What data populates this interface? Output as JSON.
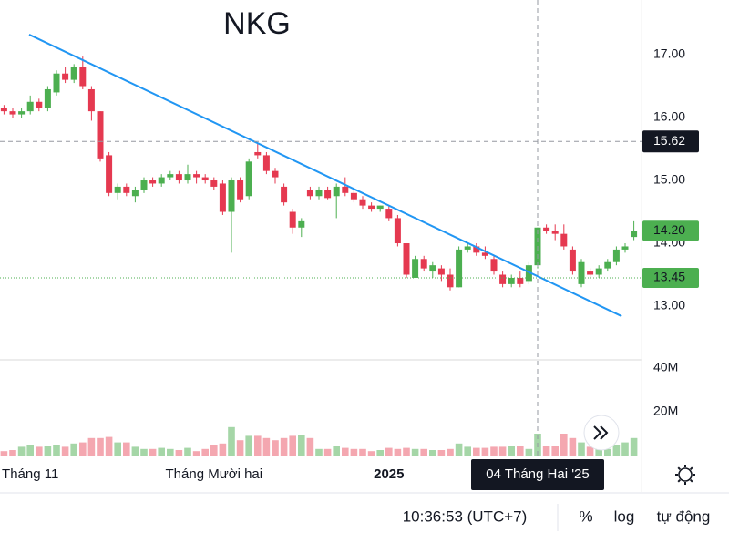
{
  "chart_data": {
    "type": "candlestick",
    "title": "NKG",
    "categories": [
      null,
      null,
      null,
      "Tháng 11",
      null,
      null,
      null,
      null,
      null,
      null,
      null,
      null,
      null,
      null,
      null,
      null,
      null,
      null,
      null,
      null,
      null,
      null,
      null,
      null,
      "Tháng Mười hai",
      null,
      null,
      null,
      null,
      null,
      null,
      null,
      null,
      null,
      null,
      null,
      null,
      null,
      null,
      null,
      null,
      null,
      null,
      null,
      "2025",
      null,
      null,
      null,
      null,
      null,
      null,
      null,
      null,
      null,
      null,
      null,
      null,
      null,
      null,
      null,
      null,
      "04 Tháng Hai '25",
      null,
      null,
      null,
      null,
      null,
      null,
      null,
      null,
      null,
      null,
      null
    ],
    "open": [
      16.15,
      16.1,
      16.05,
      16.1,
      16.25,
      16.15,
      16.4,
      16.7,
      16.6,
      16.8,
      16.45,
      16.1,
      15.4,
      14.8,
      14.9,
      14.75,
      14.85,
      15.0,
      14.95,
      15.05,
      15.1,
      15.0,
      15.1,
      15.05,
      15.0,
      14.95,
      14.5,
      15.0,
      14.75,
      15.45,
      15.4,
      15.15,
      14.9,
      14.5,
      14.25,
      14.85,
      14.75,
      14.85,
      14.75,
      14.9,
      14.8,
      14.7,
      14.6,
      14.55,
      14.55,
      14.4,
      14.0,
      13.45,
      13.75,
      13.55,
      13.6,
      13.5,
      13.3,
      13.9,
      13.95,
      13.85,
      13.75,
      13.5,
      13.35,
      13.45,
      13.4,
      13.65,
      14.25,
      14.2,
      14.15,
      13.9,
      13.35,
      13.55,
      13.5,
      13.6,
      13.7,
      13.9,
      14.1
    ],
    "high": [
      16.2,
      16.15,
      16.15,
      16.35,
      16.3,
      16.5,
      16.75,
      16.8,
      16.85,
      16.97,
      16.5,
      16.1,
      15.45,
      14.95,
      14.95,
      14.9,
      15.05,
      15.05,
      15.1,
      15.15,
      15.15,
      15.25,
      15.15,
      15.1,
      15.05,
      15.0,
      15.05,
      15.05,
      15.35,
      15.6,
      15.45,
      15.2,
      14.95,
      14.55,
      14.4,
      14.9,
      14.9,
      14.9,
      14.95,
      15.05,
      14.85,
      14.75,
      14.65,
      14.6,
      14.6,
      14.45,
      14.0,
      13.8,
      13.8,
      13.7,
      13.65,
      13.6,
      13.95,
      14.0,
      14.0,
      13.95,
      13.8,
      13.55,
      13.5,
      13.55,
      13.7,
      14.25,
      14.3,
      14.3,
      14.3,
      13.95,
      13.75,
      13.6,
      13.65,
      13.75,
      13.95,
      14.0,
      14.35
    ],
    "low": [
      16.05,
      16.0,
      16.0,
      16.05,
      16.1,
      16.1,
      16.35,
      16.55,
      16.55,
      16.45,
      15.95,
      15.3,
      14.75,
      14.7,
      14.75,
      14.65,
      14.8,
      14.9,
      14.9,
      15.0,
      14.95,
      14.95,
      14.95,
      14.95,
      14.85,
      14.45,
      13.85,
      14.65,
      14.7,
      15.35,
      15.1,
      14.95,
      14.6,
      14.15,
      14.1,
      14.7,
      14.7,
      14.7,
      14.4,
      14.75,
      14.65,
      14.55,
      14.5,
      14.5,
      14.35,
      13.95,
      13.45,
      13.45,
      13.55,
      13.45,
      13.4,
      13.25,
      13.3,
      13.85,
      13.8,
      13.75,
      13.5,
      13.3,
      13.3,
      13.3,
      13.35,
      13.6,
      14.15,
      14.05,
      13.9,
      13.5,
      13.3,
      13.45,
      13.45,
      13.55,
      13.65,
      13.85,
      14.05
    ],
    "close": [
      16.1,
      16.05,
      16.1,
      16.25,
      16.15,
      16.45,
      16.7,
      16.6,
      16.8,
      16.5,
      16.1,
      15.35,
      14.8,
      14.9,
      14.8,
      14.85,
      15.0,
      14.95,
      15.05,
      15.1,
      15.0,
      15.1,
      15.05,
      15.0,
      14.9,
      14.5,
      15.0,
      14.7,
      15.3,
      15.4,
      15.15,
      15.05,
      14.65,
      14.25,
      14.35,
      14.75,
      14.85,
      14.72,
      14.9,
      14.8,
      14.7,
      14.6,
      14.55,
      14.6,
      14.4,
      14.0,
      13.5,
      13.75,
      13.6,
      13.65,
      13.5,
      13.3,
      13.9,
      13.95,
      13.85,
      13.8,
      13.55,
      13.35,
      13.45,
      13.35,
      13.65,
      14.25,
      14.2,
      14.15,
      13.95,
      13.55,
      13.7,
      13.5,
      13.6,
      13.7,
      13.9,
      13.95,
      14.2
    ],
    "volume": [
      2000000,
      2500000,
      4000000,
      5000000,
      4000000,
      4500000,
      5000000,
      4000000,
      5500000,
      6000000,
      8000000,
      8000000,
      8500000,
      6000000,
      6000000,
      4000000,
      3000000,
      3000000,
      3500000,
      3000000,
      2500000,
      3500000,
      2000000,
      3000000,
      5000000,
      5500000,
      13000000,
      7000000,
      9000000,
      9000000,
      8000000,
      7000000,
      8000000,
      9000000,
      9500000,
      8000000,
      3000000,
      3000000,
      4500000,
      3500000,
      3000000,
      3000000,
      2000000,
      2500000,
      3500000,
      3000000,
      3500000,
      3000000,
      3000000,
      2500000,
      2500000,
      3000000,
      5500000,
      4000000,
      3500000,
      3500000,
      4000000,
      4000000,
      4500000,
      4500000,
      3000000,
      10000000,
      4500000,
      4500000,
      10000000,
      8000000,
      6000000,
      4000000,
      5000000,
      3000000,
      5000000,
      6000000,
      8000000
    ],
    "up_color": "#4caf50",
    "down_color": "#e53950",
    "volume_up_color": "#a5d6a7",
    "volume_down_color": "#f4a7b0",
    "ylim": [
      12.145,
      17.87
    ],
    "yticks": [
      {
        "value": 13,
        "label": "13.00"
      },
      {
        "value": 14,
        "label": "14.00"
      },
      {
        "value": 15,
        "label": "15.00"
      },
      {
        "value": 16,
        "label": "16.00"
      },
      {
        "value": 17,
        "label": "17.00"
      }
    ],
    "volume_ylim": [
      0,
      43750000
    ],
    "volume_yticks": [
      {
        "value": 20000000,
        "label": "20M"
      },
      {
        "value": 40000000,
        "label": "40M"
      }
    ],
    "grid": false,
    "trendline": {
      "start": [
        2.875,
        17.32
      ],
      "end": [
        70.6,
        12.84
      ],
      "color": "#2196f3"
    },
    "crosshair": {
      "category": "04 Tháng Hai '25",
      "y": {
        "value": 15.62,
        "label": "15.62"
      }
    },
    "price_lines": [
      {
        "value": 14.2,
        "label": "14.20",
        "color": "#4caf50",
        "line": false
      },
      {
        "value": 13.45,
        "label": "13.45",
        "color": "#4caf50",
        "line": true
      }
    ]
  },
  "toolbar": {
    "time": "10:36:53 (UTC+7)",
    "buttons": [
      "%",
      "log",
      "tự động"
    ]
  }
}
